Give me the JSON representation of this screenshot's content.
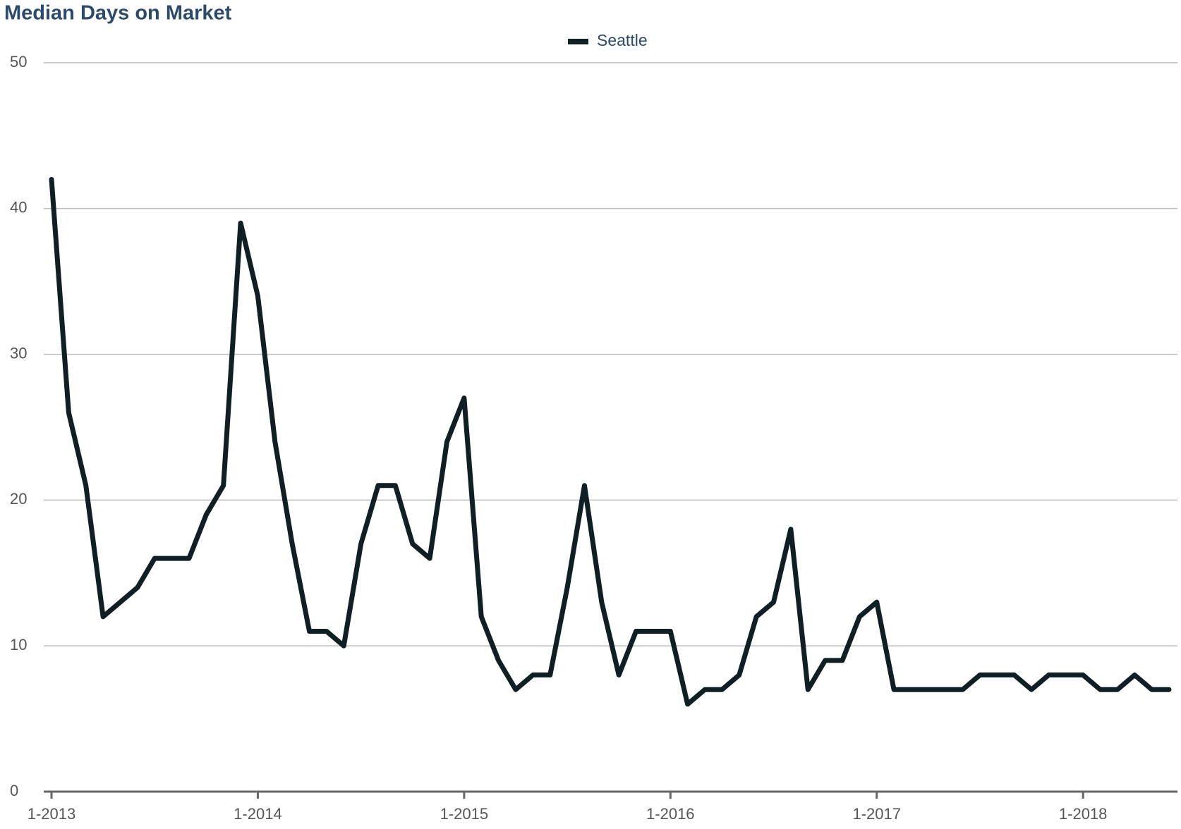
{
  "chart_data": {
    "type": "line",
    "title": "Median Days on Market",
    "categories": [
      "1-2013",
      null,
      null,
      null,
      null,
      null,
      null,
      null,
      null,
      null,
      null,
      null,
      "1-2014",
      null,
      null,
      null,
      null,
      null,
      null,
      null,
      null,
      null,
      null,
      null,
      "1-2015",
      null,
      null,
      null,
      null,
      null,
      null,
      null,
      null,
      null,
      null,
      null,
      "1-2016",
      null,
      null,
      null,
      null,
      null,
      null,
      null,
      null,
      null,
      null,
      null,
      "1-2017",
      null,
      null,
      null,
      null,
      null,
      null,
      null,
      null,
      null,
      null,
      null,
      "1-2018",
      null,
      null,
      null,
      null,
      null
    ],
    "series": [
      {
        "name": "Seattle",
        "color": "#0f1f24",
        "values": [
          42,
          26,
          21,
          12,
          13,
          14,
          16,
          16,
          16,
          19,
          21,
          39,
          34,
          24,
          17,
          11,
          11,
          10,
          17,
          21,
          21,
          17,
          16,
          24,
          27,
          12,
          9,
          7,
          8,
          8,
          14,
          21,
          13,
          8,
          11,
          11,
          11,
          6,
          7,
          7,
          8,
          12,
          13,
          18,
          7,
          9,
          9,
          12,
          13,
          7,
          7,
          7,
          7,
          7,
          8,
          8,
          8,
          7,
          8,
          8,
          8,
          7,
          7,
          8,
          7,
          7
        ]
      }
    ],
    "ylim": [
      0,
      50
    ],
    "yticks": [
      0,
      10,
      20,
      30,
      40,
      50
    ],
    "grid": true,
    "legend": "top"
  }
}
